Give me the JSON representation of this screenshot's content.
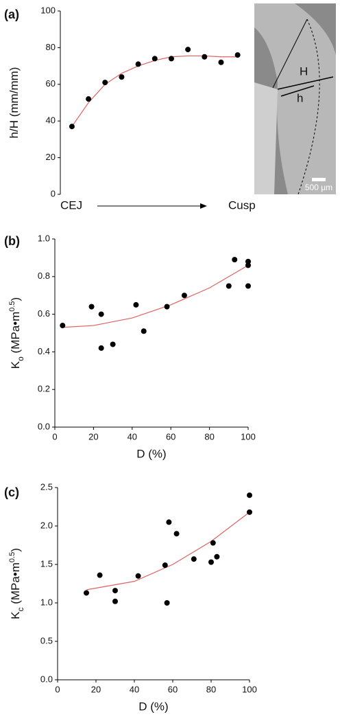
{
  "chart_data": [
    {
      "type": "scatter",
      "panel_label": "(a)",
      "ylabel": [
        {
          "text": "h/H (mm/mm)"
        }
      ],
      "categories": [
        null,
        null,
        null,
        null,
        null,
        null,
        null,
        null,
        null,
        null,
        null
      ],
      "values": [
        37,
        52,
        61,
        64,
        71,
        74,
        74,
        79,
        75,
        72,
        76
      ],
      "fit": {
        "values": [
          37,
          50,
          60,
          66,
          70,
          73,
          75,
          75.5,
          75.5,
          75,
          75
        ]
      },
      "x_start_label": "CEJ",
      "x_end_label": "Cusp",
      "ylim": [
        0,
        100
      ],
      "yticks": [
        0,
        20,
        40,
        60,
        80,
        100
      ],
      "color": "#000000",
      "fit_color": "#e06060",
      "image_labels": [
        "H",
        "h",
        "500 μm"
      ]
    },
    {
      "type": "scatter",
      "panel_label": "(b)",
      "ylabel": [
        {
          "text": "K"
        },
        {
          "text": "o",
          "shift": "sub"
        },
        {
          "text": " (MPa•m"
        },
        {
          "text": "0.5",
          "shift": "sup"
        },
        {
          "text": ")"
        }
      ],
      "xlabel": "D (%)",
      "x": [
        4,
        19,
        24,
        24,
        30,
        42,
        46,
        58,
        67,
        90,
        93,
        100,
        100,
        100
      ],
      "values": [
        0.54,
        0.64,
        0.6,
        0.42,
        0.44,
        0.65,
        0.51,
        0.64,
        0.7,
        0.75,
        0.89,
        0.88,
        0.86,
        0.75
      ],
      "fit": {
        "x": [
          4,
          20,
          40,
          60,
          80,
          100
        ],
        "values": [
          0.53,
          0.54,
          0.58,
          0.65,
          0.74,
          0.86
        ]
      },
      "xlim": [
        0,
        100
      ],
      "xticks": [
        0,
        20,
        40,
        60,
        80,
        100
      ],
      "ylim": [
        0,
        1.0
      ],
      "yticks": [
        {
          "value": 0,
          "label": "0.0"
        },
        0.2,
        0.4,
        0.6,
        0.8,
        {
          "value": 1,
          "label": "1.0"
        }
      ],
      "color": "#000000",
      "fit_color": "#e06060"
    },
    {
      "type": "scatter",
      "panel_label": "(c)",
      "ylabel": [
        {
          "text": "K"
        },
        {
          "text": "c",
          "shift": "sub"
        },
        {
          "text": " (MPa•m"
        },
        {
          "text": "0.5",
          "shift": "sup"
        },
        {
          "text": ")"
        }
      ],
      "xlabel": "D (%)",
      "x": [
        15,
        22,
        30,
        30,
        42,
        56,
        57,
        58,
        62,
        71,
        80,
        81,
        83,
        100,
        100
      ],
      "values": [
        1.13,
        1.36,
        1.16,
        1.02,
        1.35,
        1.49,
        1.0,
        2.05,
        1.9,
        1.57,
        1.53,
        1.78,
        1.6,
        2.4,
        2.18
      ],
      "fit": {
        "x": [
          15,
          40,
          60,
          80,
          100
        ],
        "values": [
          1.17,
          1.28,
          1.5,
          1.8,
          2.18
        ]
      },
      "xlim": [
        0,
        100
      ],
      "xticks": [
        0,
        20,
        40,
        60,
        80,
        100
      ],
      "ylim": [
        0,
        2.5
      ],
      "yticks": [
        {
          "value": 0,
          "label": "0.0"
        },
        0.5,
        {
          "value": 1,
          "label": "1.0"
        },
        1.5,
        {
          "value": 2,
          "label": "2.0"
        },
        2.5
      ],
      "color": "#000000",
      "fit_color": "#e06060"
    }
  ]
}
